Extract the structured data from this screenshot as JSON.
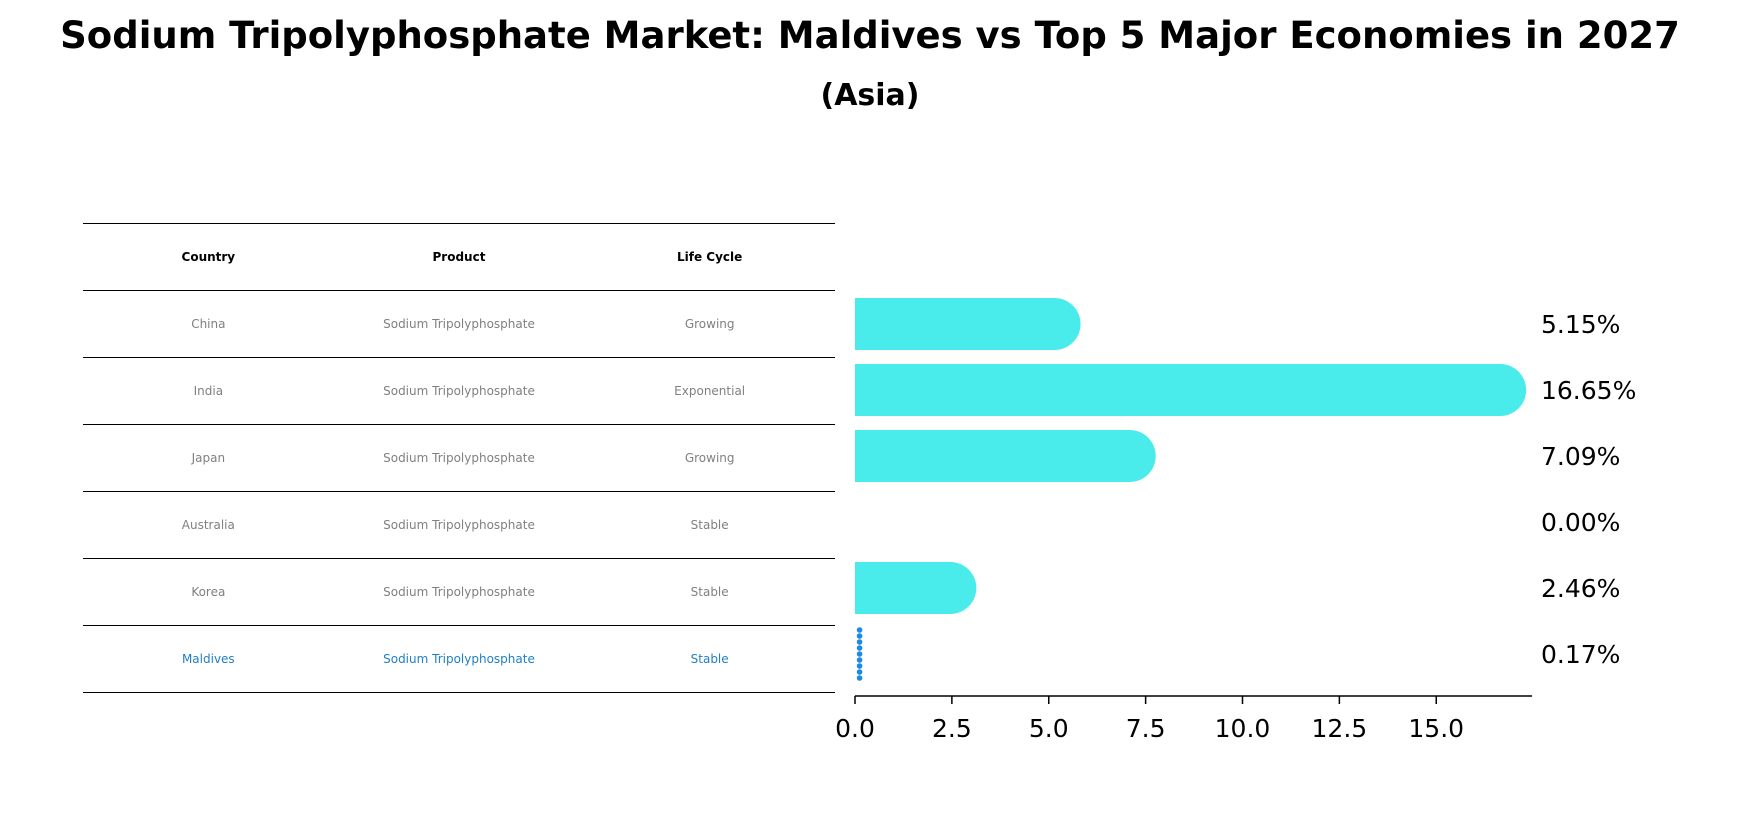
{
  "title": "Sodium Tripolyphosphate Market: Maldives vs Top 5 Major Economies in 2027",
  "subtitle": "(Asia)",
  "table": {
    "headers": [
      "Country",
      "Product",
      "Life Cycle"
    ],
    "rows": [
      {
        "country": "China",
        "product": "Sodium Tripolyphosphate",
        "lifecycle": "Growing"
      },
      {
        "country": "India",
        "product": "Sodium Tripolyphosphate",
        "lifecycle": "Exponential"
      },
      {
        "country": "Japan",
        "product": "Sodium Tripolyphosphate",
        "lifecycle": "Growing"
      },
      {
        "country": "Australia",
        "product": "Sodium Tripolyphosphate",
        "lifecycle": "Stable"
      },
      {
        "country": "Korea",
        "product": "Sodium Tripolyphosphate",
        "lifecycle": "Stable"
      },
      {
        "country": "Maldives",
        "product": "Sodium Tripolyphosphate",
        "lifecycle": "Stable"
      }
    ]
  },
  "chart_data": {
    "type": "bar",
    "orientation": "horizontal",
    "categories": [
      "China",
      "India",
      "Japan",
      "Australia",
      "Korea",
      "Maldives"
    ],
    "values": [
      5.15,
      16.65,
      7.09,
      0.0,
      2.46,
      0.17
    ],
    "value_labels": [
      "5.15%",
      "16.65%",
      "7.09%",
      "0.00%",
      "2.46%",
      "0.17%"
    ],
    "highlight": "Maldives",
    "xlim": [
      0,
      17.5
    ],
    "xticks": [
      0.0,
      2.5,
      5.0,
      7.5,
      10.0,
      12.5,
      15.0
    ],
    "xtick_labels": [
      "0.0",
      "2.5",
      "5.0",
      "7.5",
      "10.0",
      "12.5",
      "15.0"
    ],
    "colors": {
      "bar": "#4aeceb",
      "highlight": "#1e88e5"
    }
  }
}
